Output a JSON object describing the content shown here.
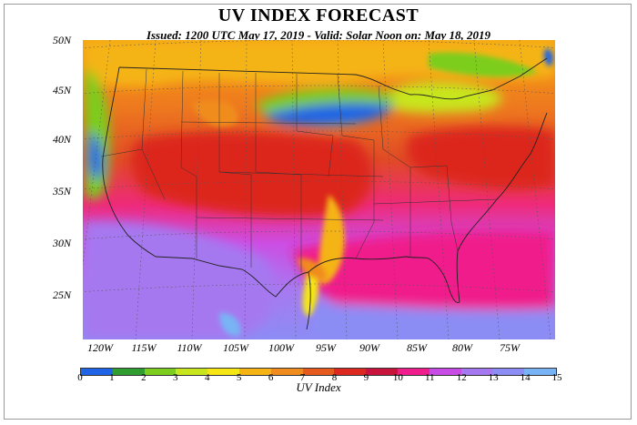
{
  "title": "UV INDEX FORECAST",
  "subtitle": "Issued: 1200 UTC May 17, 2019  -  Valid: Solar Noon on: May 18, 2019",
  "lat_labels": [
    "50N",
    "45N",
    "40N",
    "35N",
    "30N",
    "25N"
  ],
  "lon_labels": [
    "120W",
    "115W",
    "110W",
    "105W",
    "100W",
    "95W",
    "90W",
    "85W",
    "80W",
    "75W"
  ],
  "colorbar": {
    "label": "UV Index",
    "ticks": [
      "0",
      "1",
      "2",
      "3",
      "4",
      "5",
      "6",
      "7",
      "8",
      "9",
      "10",
      "11",
      "12",
      "13",
      "14",
      "15"
    ],
    "colors": [
      "#1f64e6",
      "#2f9d2f",
      "#7ccd1e",
      "#c8e61e",
      "#f5e614",
      "#f5b414",
      "#f08c1e",
      "#e65a1e",
      "#dc281e",
      "#c8143c",
      "#f01e8c",
      "#c84be6",
      "#a678f0",
      "#8c8cf5",
      "#78b4f5"
    ]
  }
}
